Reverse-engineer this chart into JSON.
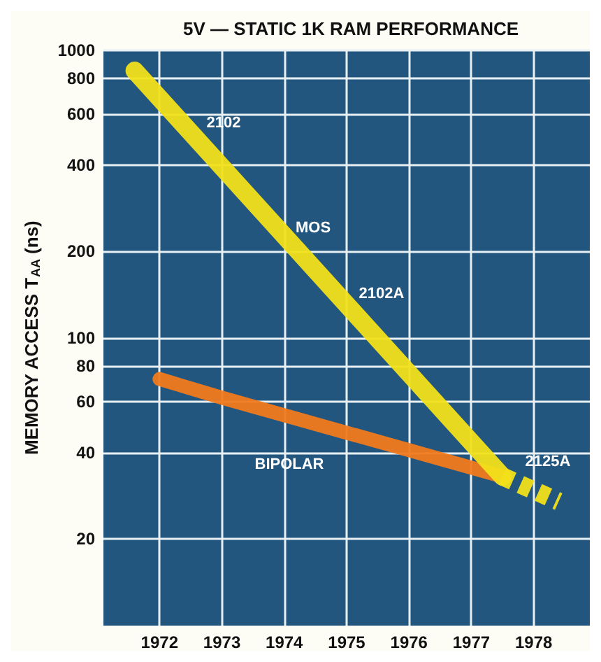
{
  "chart_data": {
    "type": "line",
    "title": "5V — STATIC 1K RAM PERFORMANCE",
    "ylabel": "MEMORY ACCESS T$_{AA}$ (ns)",
    "xlim": [
      1971.1,
      1978.9
    ],
    "xticks": [
      1972,
      1973,
      1974,
      1975,
      1976,
      1977,
      1978
    ],
    "ylim": [
      10,
      1000
    ],
    "yticks": [
      20,
      40,
      60,
      80,
      100,
      200,
      400,
      600,
      800,
      1000
    ],
    "log": "y",
    "grid": true,
    "marker": "none",
    "series": [
      {
        "name": "MOS",
        "color": "#f2e01a",
        "x": [
          1971.6,
          1977.5
        ],
        "values": [
          850,
          33
        ],
        "line_style": "solid"
      },
      {
        "color": "#f2e01a",
        "x": [
          1977.5,
          1978.4
        ],
        "values": [
          33,
          27
        ],
        "line_style": "dashed"
      },
      {
        "name": "BIPOLAR",
        "color": "#f07a1c",
        "x": [
          1972,
          1973,
          1977.5
        ],
        "values": [
          72,
          62,
          33
        ],
        "line_style": "solid"
      }
    ],
    "annotations": [
      "2102",
      "2102A",
      "2125A"
    ]
  }
}
